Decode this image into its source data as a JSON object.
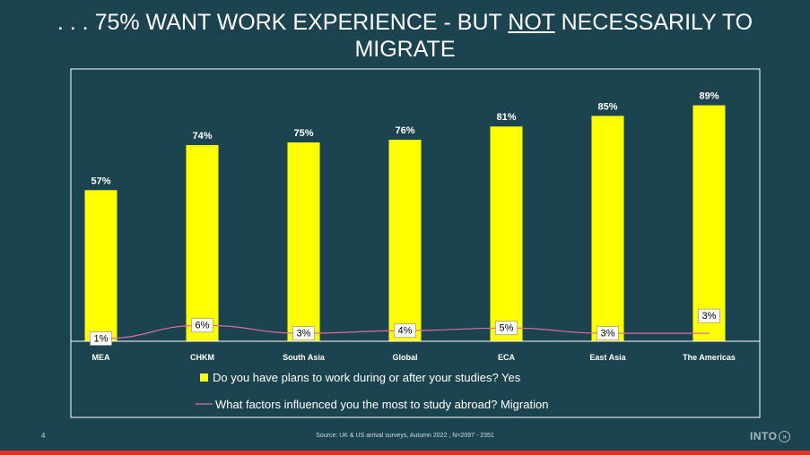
{
  "slide": {
    "title_part1": ". . . 75% WANT WORK EXPERIENCE  - BUT ",
    "title_underlined": "NOT",
    "title_part2": " NECESSARILY TO MIGRATE",
    "page_number": "4",
    "source": "Source: UK & US arrival surveys, Autumn 2022 , N=2097 - 2351",
    "logo_text": "INTO",
    "logo_glyph": "»"
  },
  "colors": {
    "background": "#1c4450",
    "bar": "#ffff00",
    "line": "#e06c9f",
    "accent_bar": "#e0312d"
  },
  "chart_data": {
    "type": "bar",
    "categories": [
      "MEA",
      "CHKM",
      "South Asia",
      "Global",
      "ECA",
      "East Asia",
      "The Americas"
    ],
    "series": [
      {
        "name": "Do you have plans to work during or after your studies? Yes",
        "type": "bar",
        "values": [
          57,
          74,
          75,
          76,
          81,
          85,
          89
        ],
        "labels": [
          "57%",
          "74%",
          "75%",
          "76%",
          "81%",
          "85%",
          "89%"
        ]
      },
      {
        "name": "What factors influenced you the most to study abroad? Migration",
        "type": "line",
        "values": [
          1,
          6,
          3,
          4,
          5,
          3,
          3
        ],
        "labels": [
          "1%",
          "6%",
          "3%",
          "4%",
          "5%",
          "3%",
          "3%"
        ]
      }
    ],
    "ylim": [
      0,
      100
    ],
    "grid": false,
    "legend_position": "bottom"
  }
}
